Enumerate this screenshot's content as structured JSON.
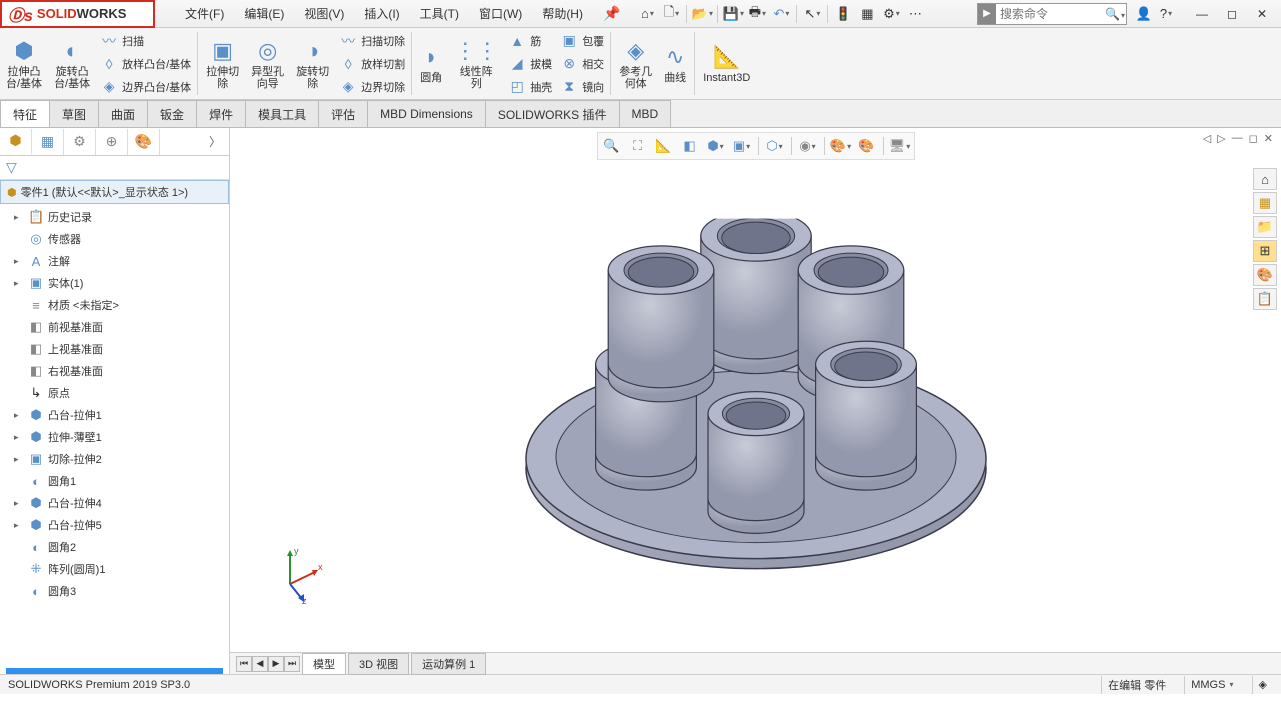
{
  "app": {
    "name_solid": "SOLID",
    "name_works": "WORKS"
  },
  "menu": {
    "file": "文件(F)",
    "edit": "编辑(E)",
    "view": "视图(V)",
    "insert": "插入(I)",
    "tools": "工具(T)",
    "window": "窗口(W)",
    "help": "帮助(H)"
  },
  "search": {
    "placeholder": "搜索命令"
  },
  "ribbon": {
    "boss_extrude": "拉伸凸\n台/基体",
    "revolve_boss": "旋转凸\n台/基体",
    "sweep": "扫描",
    "loft": "放样凸台/基体",
    "boundary": "边界凸台/基体",
    "cut_extrude": "拉伸切\n除",
    "hole_wizard": "异型孔\n向导",
    "revolve_cut": "旋转切\n除",
    "swept_cut": "扫描切除",
    "loft_cut": "放样切割",
    "boundary_cut": "边界切除",
    "fillet": "圆角",
    "linear_pattern": "线性阵\n列",
    "rib": "筋",
    "draft": "拔模",
    "shell": "抽壳",
    "wrap": "包覆",
    "intersect": "相交",
    "mirror": "镜向",
    "ref_geom": "参考几\n何体",
    "curves": "曲线",
    "instant3d": "Instant3D"
  },
  "tabs": {
    "feature": "特征",
    "sketch": "草图",
    "surface": "曲面",
    "sheetmetal": "钣金",
    "weldment": "焊件",
    "mold": "模具工具",
    "evaluate": "评估",
    "mbd_dim": "MBD Dimensions",
    "sw_addin": "SOLIDWORKS 插件",
    "mbd": "MBD"
  },
  "tree": {
    "part_title": "零件1  (默认<<默认>_显示状态 1>)",
    "items": [
      {
        "icon": "📋",
        "label": "历史记录",
        "exp": "▸",
        "color": "#5a8fc8"
      },
      {
        "icon": "◎",
        "label": "传感器",
        "exp": "",
        "color": "#5a8fc8"
      },
      {
        "icon": "A",
        "label": "注解",
        "exp": "▸",
        "color": "#5a8fc8"
      },
      {
        "icon": "▣",
        "label": "实体(1)",
        "exp": "▸",
        "color": "#5a8fc8"
      },
      {
        "icon": "≡",
        "label": "材质 <未指定>",
        "exp": "",
        "color": "#888"
      },
      {
        "icon": "◧",
        "label": "前视基准面",
        "exp": "",
        "color": "#888"
      },
      {
        "icon": "◧",
        "label": "上视基准面",
        "exp": "",
        "color": "#888"
      },
      {
        "icon": "◧",
        "label": "右视基准面",
        "exp": "",
        "color": "#888"
      },
      {
        "icon": "↳",
        "label": "原点",
        "exp": "",
        "color": "#333"
      },
      {
        "icon": "⬢",
        "label": "凸台-拉伸1",
        "exp": "▸",
        "color": "#5a8fc8"
      },
      {
        "icon": "⬢",
        "label": "拉伸-薄壁1",
        "exp": "▸",
        "color": "#5a8fc8"
      },
      {
        "icon": "▣",
        "label": "切除-拉伸2",
        "exp": "▸",
        "color": "#5a8fc8"
      },
      {
        "icon": "◐",
        "label": "圆角1",
        "exp": "",
        "color": "#5a8fc8"
      },
      {
        "icon": "⬢",
        "label": "凸台-拉伸4",
        "exp": "▸",
        "color": "#5a8fc8"
      },
      {
        "icon": "⬢",
        "label": "凸台-拉伸5",
        "exp": "▸",
        "color": "#5a8fc8"
      },
      {
        "icon": "◐",
        "label": "圆角2",
        "exp": "",
        "color": "#5a8fc8"
      },
      {
        "icon": "⁜",
        "label": "阵列(圆周)1",
        "exp": "",
        "color": "#5a8fc8"
      },
      {
        "icon": "◐",
        "label": "圆角3",
        "exp": "",
        "color": "#5a8fc8"
      }
    ]
  },
  "bottom_tabs": {
    "model": "模型",
    "view3d": "3D 视图",
    "motion": "运动算例 1"
  },
  "status": {
    "version": "SOLIDWORKS Premium 2019 SP3.0",
    "editing": "在编辑 零件",
    "units": "MMGS"
  },
  "colors": {
    "accent": "#d52b1e",
    "icon_blue": "#5a8fc8",
    "sel_blue": "#3090f0",
    "panel": "#f4f4f4",
    "model_fill": "#a8acc0",
    "model_stroke": "#3a3a4a"
  },
  "triad": {
    "x": "x",
    "y": "y",
    "z": "z",
    "x_color": "#d52b1e",
    "y_color": "#2a9030",
    "z_color": "#2050c0"
  }
}
